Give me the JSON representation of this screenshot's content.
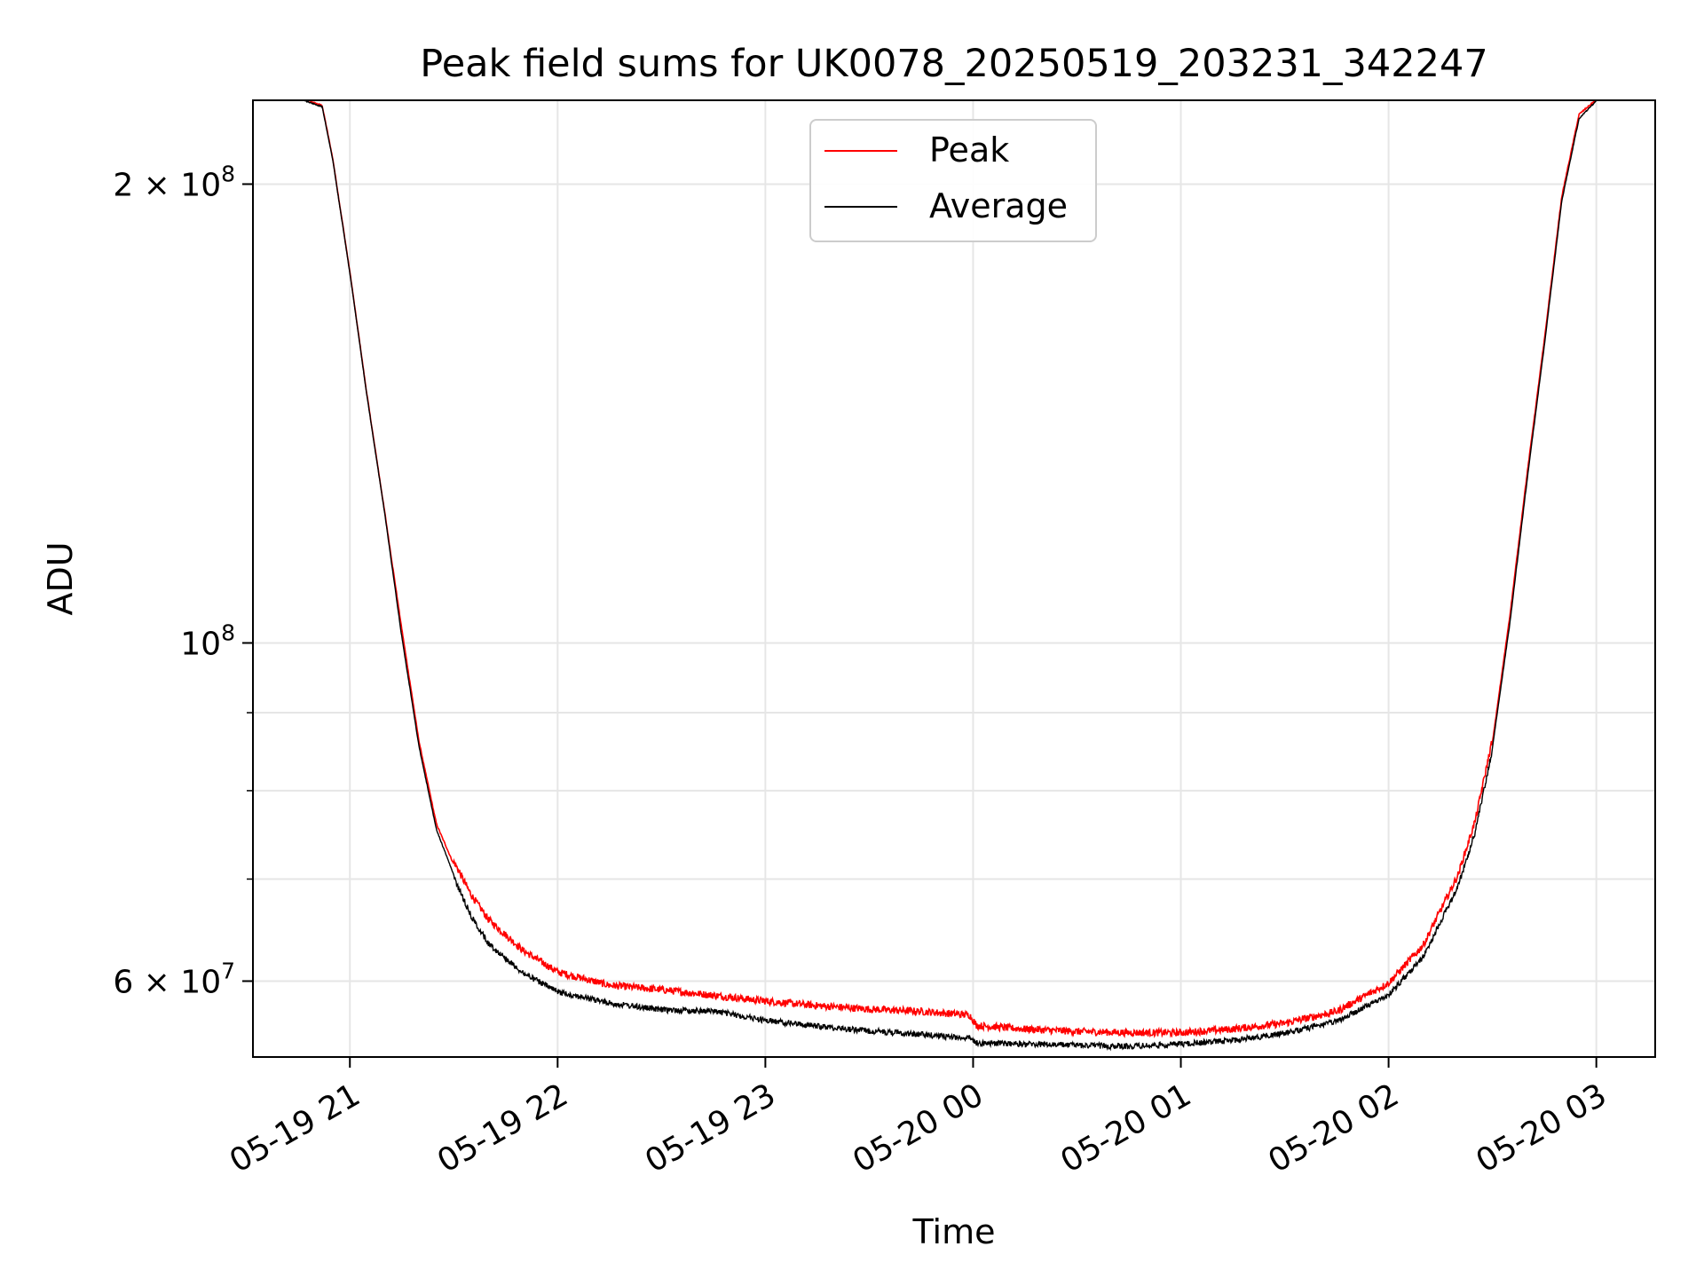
{
  "chart_data": {
    "type": "line",
    "title": "Peak field sums for UK0078_20250519_203231_342247",
    "xlabel": "Time",
    "ylabel": "ADU",
    "yscale": "log",
    "grid": true,
    "legend_placement": "upper center",
    "xlim": [
      "05-19 20:32",
      "05-20 03:17"
    ],
    "ylim": [
      53500000,
      227000000
    ],
    "xticks": [
      "05-19 21",
      "05-19 22",
      "05-19 23",
      "05-20 00",
      "05-20 01",
      "05-20 02",
      "05-20 03"
    ],
    "ytick_labels": [
      {
        "value": 200000000,
        "base": "2 × 10",
        "exp": "8"
      },
      {
        "value": 100000000,
        "base": "10",
        "exp": "8"
      },
      {
        "value": 60000000,
        "base": "6 × 10",
        "exp": "7"
      }
    ],
    "yminor_ticks": [
      70000000,
      80000000,
      90000000
    ],
    "series": [
      {
        "name": "Peak",
        "color": "#ff0000",
        "x": [
          "05-19 20:47",
          "05-19 20:52",
          "05-19 20:55",
          "05-19 21:00",
          "05-19 21:05",
          "05-19 21:10",
          "05-19 21:15",
          "05-19 21:20",
          "05-19 21:25",
          "05-19 21:30",
          "05-19 21:35",
          "05-19 21:40",
          "05-19 21:50",
          "05-19 22:00",
          "05-19 22:15",
          "05-19 22:30",
          "05-19 22:45",
          "05-19 23:00",
          "05-19 23:15",
          "05-19 23:30",
          "05-19 23:45",
          "05-19 23:59",
          "05-20 00:01",
          "05-20 00:15",
          "05-20 00:30",
          "05-20 00:45",
          "05-20 01:00",
          "05-20 01:15",
          "05-20 01:30",
          "05-20 01:45",
          "05-20 02:00",
          "05-20 02:10",
          "05-20 02:20",
          "05-20 02:25",
          "05-20 02:30",
          "05-20 02:35",
          "05-20 02:40",
          "05-20 02:45",
          "05-20 02:50",
          "05-20 02:55",
          "05-20 03:00"
        ],
        "y": [
          227000000,
          225000000,
          208000000,
          175000000,
          145000000,
          122000000,
          102000000,
          86000000,
          76000000,
          71500000,
          68000000,
          65500000,
          62500000,
          60500000,
          59300000,
          58900000,
          58400000,
          57900000,
          57500000,
          57200000,
          57000000,
          56700000,
          55800000,
          55500000,
          55300000,
          55200000,
          55200000,
          55500000,
          56000000,
          57000000,
          59500000,
          63000000,
          70000000,
          76000000,
          86000000,
          104000000,
          129000000,
          158000000,
          196000000,
          222000000,
          227000000
        ]
      },
      {
        "name": "Average",
        "color": "#000000",
        "x": [
          "05-19 20:47",
          "05-19 20:52",
          "05-19 20:55",
          "05-19 21:00",
          "05-19 21:05",
          "05-19 21:10",
          "05-19 21:15",
          "05-19 21:20",
          "05-19 21:25",
          "05-19 21:30",
          "05-19 21:35",
          "05-19 21:40",
          "05-19 21:50",
          "05-19 22:00",
          "05-19 22:15",
          "05-19 22:30",
          "05-19 22:45",
          "05-19 23:00",
          "05-19 23:15",
          "05-19 23:30",
          "05-19 23:45",
          "05-19 23:59",
          "05-20 00:01",
          "05-20 00:15",
          "05-20 00:30",
          "05-20 00:45",
          "05-20 01:00",
          "05-20 01:15",
          "05-20 01:30",
          "05-20 01:45",
          "05-20 02:00",
          "05-20 02:10",
          "05-20 02:20",
          "05-20 02:25",
          "05-20 02:30",
          "05-20 02:35",
          "05-20 02:40",
          "05-20 02:45",
          "05-20 02:50",
          "05-20 02:55",
          "05-20 03:00"
        ],
        "y": [
          227000000,
          225000000,
          208000000,
          175000000,
          145000000,
          122000000,
          101000000,
          85500000,
          75500000,
          70500000,
          66500000,
          63800000,
          61000000,
          59300000,
          58300000,
          57700000,
          57600000,
          56800000,
          56300000,
          55900000,
          55600000,
          55300000,
          54900000,
          54800000,
          54700000,
          54600000,
          54800000,
          55100000,
          55700000,
          56700000,
          59000000,
          62500000,
          69500000,
          75500000,
          85500000,
          103000000,
          128000000,
          157000000,
          195000000,
          221000000,
          227000000
        ]
      }
    ]
  }
}
